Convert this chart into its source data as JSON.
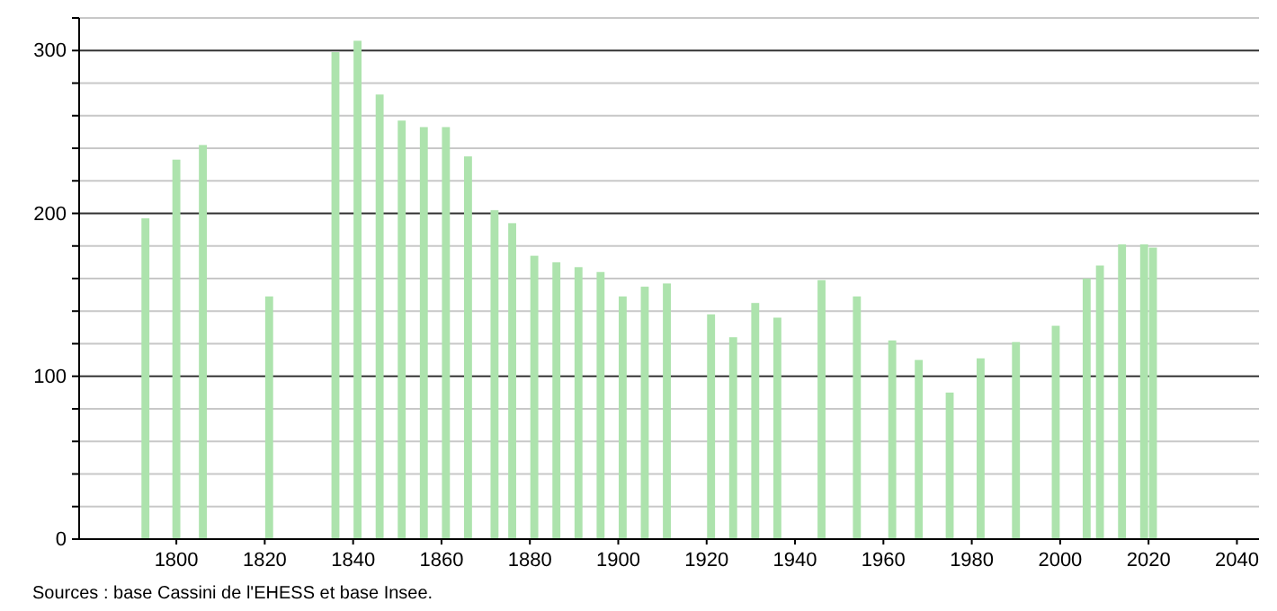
{
  "chart_data": {
    "type": "bar",
    "color": "#ade3ad",
    "x": [
      1793,
      1800,
      1806,
      1821,
      1836,
      1841,
      1846,
      1851,
      1856,
      1861,
      1866,
      1872,
      1876,
      1881,
      1886,
      1891,
      1896,
      1901,
      1906,
      1911,
      1921,
      1926,
      1931,
      1936,
      1946,
      1954,
      1962,
      1968,
      1975,
      1982,
      1990,
      1999,
      2006,
      2009,
      2014,
      2019,
      2021
    ],
    "values": [
      197,
      233,
      242,
      149,
      299,
      306,
      273,
      257,
      253,
      253,
      235,
      202,
      194,
      174,
      170,
      167,
      164,
      149,
      155,
      157,
      138,
      124,
      145,
      136,
      159,
      149,
      122,
      110,
      90,
      111,
      121,
      131,
      160,
      168,
      181,
      181,
      179
    ],
    "xlim": [
      1778,
      2045
    ],
    "xticks": [
      1800,
      1820,
      1840,
      1860,
      1880,
      1900,
      1920,
      1940,
      1960,
      1980,
      2000,
      2020,
      2040
    ],
    "ylim": [
      0,
      320
    ],
    "yticks": [
      0,
      {
        "value": 20,
        "label": null
      },
      {
        "value": 40,
        "label": null
      },
      {
        "value": 60,
        "label": null
      },
      {
        "value": 80,
        "label": null
      },
      100,
      {
        "value": 120,
        "label": null
      },
      {
        "value": 140,
        "label": null
      },
      {
        "value": 160,
        "label": null
      },
      {
        "value": 180,
        "label": null
      },
      200,
      {
        "value": 220,
        "label": null
      },
      {
        "value": 240,
        "label": null
      },
      {
        "value": 260,
        "label": null
      },
      {
        "value": 280,
        "label": null
      },
      300,
      {
        "value": 320,
        "label": null
      }
    ],
    "grid": "y",
    "annotations": [
      "Sources : base Cassini de l'EHESS et base Insee."
    ]
  }
}
